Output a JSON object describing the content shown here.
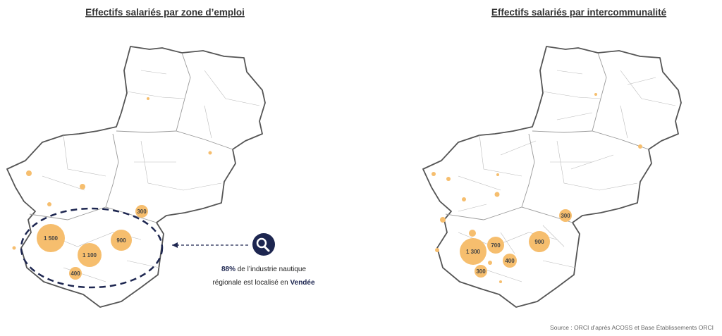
{
  "maps": [
    {
      "title": "Effectifs salariés par zone d’emploi",
      "bubbles": [
        {
          "label": "1 500"
        },
        {
          "label": "1 100"
        },
        {
          "label": "900"
        },
        {
          "label": "400"
        },
        {
          "label": "300"
        }
      ]
    },
    {
      "title": "Effectifs salariés par intercommunalité",
      "bubbles": [
        {
          "label": "1 300"
        },
        {
          "label": "700"
        },
        {
          "label": "900"
        },
        {
          "label": "400"
        },
        {
          "label": "300"
        },
        {
          "label": "300"
        }
      ]
    }
  ],
  "callout": {
    "share": "88%",
    "text1": " de l’industrie nautique",
    "text2": "régionale est localisé en ",
    "place": "Vendée"
  },
  "source": "Source : ORCI d’après ACOSS et Base Établissements ORCI"
}
